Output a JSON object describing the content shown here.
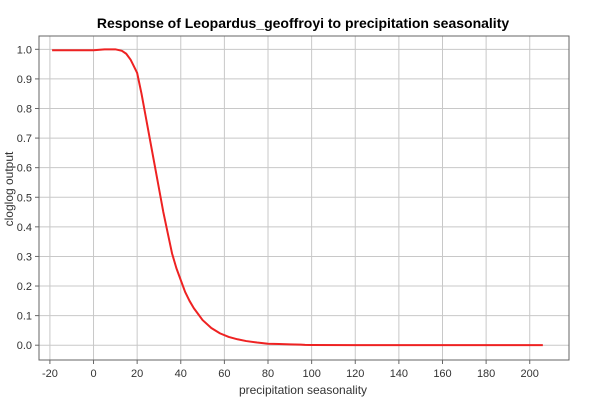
{
  "chart_data": {
    "type": "line",
    "title": "Response of Leopardus_geoffroyi to precipitation seasonality",
    "xlabel": "precipitation seasonality",
    "ylabel": "cloglog output",
    "xlim": [
      -25,
      218
    ],
    "ylim": [
      -0.05,
      1.045
    ],
    "x_ticks": [
      -20,
      0,
      20,
      40,
      60,
      80,
      100,
      120,
      140,
      160,
      180,
      200
    ],
    "y_ticks": [
      0.0,
      0.1,
      0.2,
      0.3,
      0.4,
      0.5,
      0.6,
      0.7,
      0.8,
      0.9,
      1.0
    ],
    "x_tick_labels": [
      "-20",
      "0",
      "20",
      "40",
      "60",
      "80",
      "100",
      "120",
      "140",
      "160",
      "180",
      "200"
    ],
    "y_tick_labels": [
      "0.0",
      "0.1",
      "0.2",
      "0.3",
      "0.4",
      "0.5",
      "0.6",
      "0.7",
      "0.8",
      "0.9",
      "1.0"
    ],
    "grid": true,
    "series": [
      {
        "color": "#ee2222",
        "x": [
          -19,
          -10,
          0,
          5,
          10,
          13,
          15,
          17,
          18,
          20,
          22,
          24,
          26,
          28,
          30,
          32,
          34,
          36,
          38,
          40,
          42,
          44,
          46,
          48,
          50,
          54,
          58,
          62,
          66,
          70,
          75,
          80,
          85,
          90,
          95,
          97,
          100,
          120,
          150,
          180,
          206
        ],
        "y": [
          0.997,
          0.997,
          0.997,
          1.0,
          1.0,
          0.995,
          0.985,
          0.965,
          0.95,
          0.92,
          0.85,
          0.77,
          0.69,
          0.61,
          0.53,
          0.45,
          0.38,
          0.31,
          0.26,
          0.22,
          0.18,
          0.15,
          0.125,
          0.105,
          0.085,
          0.058,
          0.04,
          0.028,
          0.02,
          0.014,
          0.009,
          0.005,
          0.004,
          0.003,
          0.002,
          0.001,
          0.0005,
          0.0003,
          0.0002,
          0.0002,
          0.0002
        ]
      }
    ]
  }
}
